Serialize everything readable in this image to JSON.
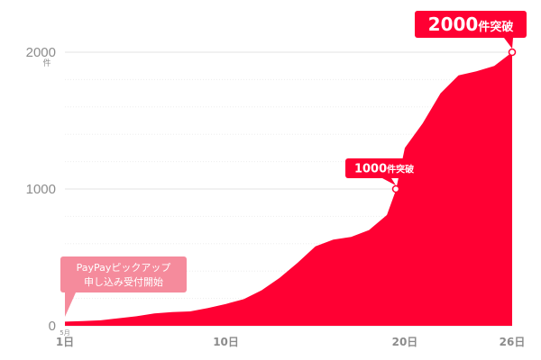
{
  "chart_data": {
    "type": "area",
    "title": "",
    "xlabel": "",
    "ylabel": "",
    "y_unit": "件",
    "x_start_month": "5月",
    "ylim": [
      0,
      2000
    ],
    "xlim": [
      1,
      26
    ],
    "y_ticks": [
      {
        "value": 0,
        "label": "0"
      },
      {
        "value": 1000,
        "label": "1000"
      },
      {
        "value": 2000,
        "label": "2000"
      }
    ],
    "x_ticks": [
      {
        "value": 1,
        "label": "1日"
      },
      {
        "value": 10,
        "label": "10日"
      },
      {
        "value": 20,
        "label": "20日"
      },
      {
        "value": 26,
        "label": "26日"
      }
    ],
    "grid": true,
    "x": [
      1,
      2,
      3,
      4,
      5,
      6,
      7,
      8,
      9,
      10,
      11,
      12,
      13,
      14,
      15,
      16,
      17,
      18,
      19,
      19.5,
      20,
      21,
      22,
      23,
      24,
      25,
      26
    ],
    "values": [
      30,
      35,
      40,
      55,
      70,
      90,
      100,
      105,
      130,
      160,
      195,
      260,
      350,
      460,
      580,
      630,
      650,
      700,
      810,
      990,
      1300,
      1480,
      1700,
      1830,
      1860,
      1900,
      2000
    ],
    "color": "#ff0033",
    "annotations": [
      {
        "x": 19.5,
        "y": 1000,
        "label": "1000",
        "suffix": "件突破"
      },
      {
        "x": 26,
        "y": 2000,
        "label": "2000",
        "suffix": "件突破"
      }
    ],
    "note": {
      "line1": "PayPayピックアップ",
      "line2": "申し込み受付開始",
      "color": "#f58b9c"
    }
  }
}
